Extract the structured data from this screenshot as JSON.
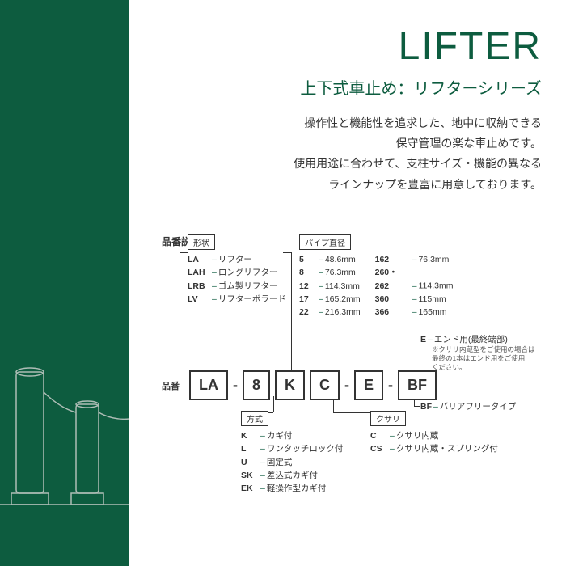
{
  "colors": {
    "brand": "#0d5c3f",
    "text": "#333333",
    "sidebar": "#0d5c3f",
    "outline": "#aebdb6"
  },
  "header": {
    "title": "LIFTER",
    "subtitle": "上下式車止め：リフターシリーズ",
    "desc": [
      "操作性と機能性を追求した、地中に収納できる",
      "保守管理の楽な車止めです。",
      "使用用途に合わせて、支柱サイズ・機能の異なる",
      "ラインナップを豊富に用意しております。"
    ]
  },
  "diagram": {
    "section_title": "品番説明",
    "hinban_label": "品番",
    "shape": {
      "label": "形状",
      "items": [
        {
          "code": "LA",
          "desc": "リフター"
        },
        {
          "code": "LAH",
          "desc": "ロングリフター"
        },
        {
          "code": "LRB",
          "desc": "ゴム製リフター"
        },
        {
          "code": "LV",
          "desc": "リフターボラード"
        }
      ]
    },
    "pipe": {
      "label": "パイプ直径",
      "col1": [
        {
          "code": "5",
          "desc": "48.6mm"
        },
        {
          "code": "8",
          "desc": "76.3mm"
        },
        {
          "code": "12",
          "desc": "114.3mm"
        },
        {
          "code": "17",
          "desc": "165.2mm"
        },
        {
          "code": "22",
          "desc": "216.3mm"
        }
      ],
      "col2": [
        {
          "code": "162",
          "desc": "76.3mm"
        },
        {
          "code": "260・262",
          "desc": "114.3mm"
        },
        {
          "code": "360",
          "desc": "115mm"
        },
        {
          "code": "366",
          "desc": "165mm"
        }
      ]
    },
    "method": {
      "label": "方式",
      "items": [
        {
          "code": "K",
          "desc": "カギ付"
        },
        {
          "code": "L",
          "desc": "ワンタッチロック付"
        },
        {
          "code": "U",
          "desc": "固定式"
        },
        {
          "code": "SK",
          "desc": "差込式カギ付"
        },
        {
          "code": "EK",
          "desc": "軽操作型カギ付"
        }
      ]
    },
    "chain": {
      "label": "クサリ",
      "items": [
        {
          "code": "C",
          "desc": "クサリ内蔵"
        },
        {
          "code": "CS",
          "desc": "クサリ内蔵・スプリング付"
        }
      ]
    },
    "end": {
      "code": "E",
      "desc": "エンド用(最終端部)",
      "note": [
        "※クサリ内蔵型をご使用の場合は",
        "最終の1本はエンド用をご使用",
        "ください。"
      ]
    },
    "bf": {
      "code": "BF",
      "desc": "バリアフリータイプ"
    },
    "example": [
      "LA",
      "8",
      "K",
      "C",
      "E",
      "BF"
    ]
  }
}
